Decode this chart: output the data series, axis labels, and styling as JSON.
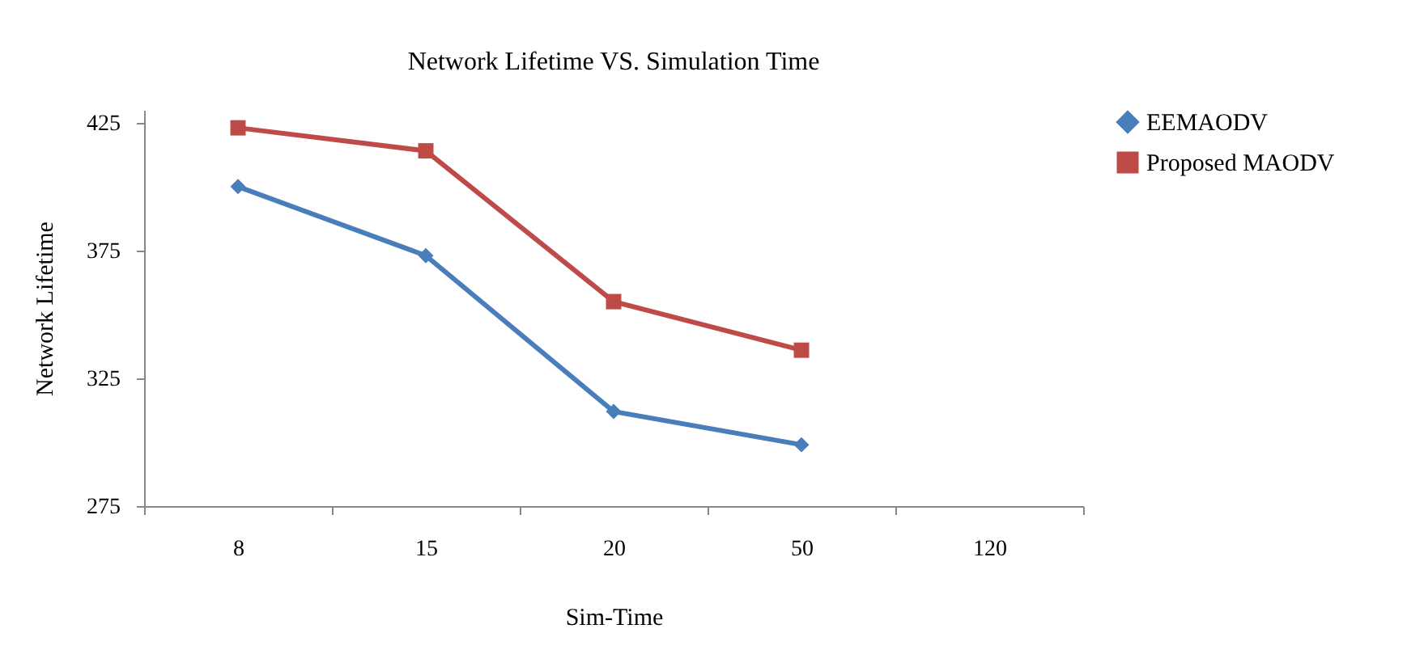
{
  "chart_data": {
    "type": "line",
    "title": "Network Lifetime VS. Simulation Time",
    "xlabel": "Sim-Time",
    "ylabel": "Network Lifetime",
    "categories": [
      "8",
      "15",
      "20",
      "50",
      "120"
    ],
    "series": [
      {
        "name": "EEMAODV",
        "color": "#4a7ebb",
        "marker": "diamond",
        "values": [
          400,
          373,
          312,
          299,
          null
        ]
      },
      {
        "name": "Proposed MAODV",
        "color": "#be4b48",
        "marker": "square",
        "values": [
          423,
          414,
          355,
          336,
          null
        ]
      }
    ],
    "ylim": [
      275,
      430
    ],
    "yticks": [
      275,
      325,
      375,
      425
    ],
    "grid": false,
    "legend": "right"
  }
}
